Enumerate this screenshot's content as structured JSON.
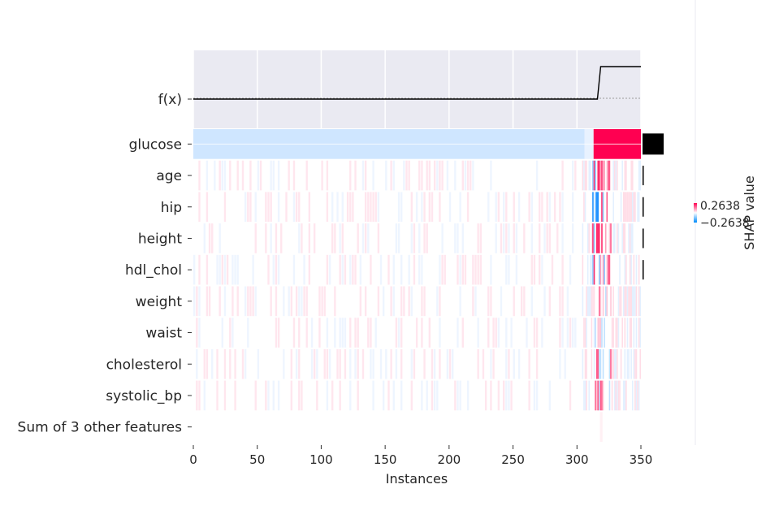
{
  "chart_data": {
    "type": "heatmap",
    "title": "",
    "xlabel": "Instances",
    "xlim": [
      0,
      350
    ],
    "x_ticks": [
      "0",
      "50",
      "100",
      "150",
      "200",
      "250",
      "300",
      "350"
    ],
    "fx_label": "f(x)",
    "features": [
      "glucose",
      "age",
      "hip",
      "height",
      "hdl_chol",
      "weight",
      "waist",
      "cholesterol",
      "systolic_bp",
      "Sum of 3 other features"
    ],
    "feature_importance": [
      1.0,
      0.03,
      0.03,
      0.03,
      0.03,
      0.0,
      0.0,
      0.0,
      0.0,
      0.0
    ],
    "fx_curve": {
      "low_value_until": 316,
      "step_at": 316,
      "note": "flat near baseline then rises"
    },
    "colorbar": {
      "label": "SHAP value",
      "max_label": "0.2638",
      "min_label": "−0.2638",
      "colors": {
        "positive": "#ff0051",
        "negative": "#008bfb",
        "neutral": "#ffffff"
      }
    },
    "background_color": "#eaeaf2",
    "grid": true
  }
}
